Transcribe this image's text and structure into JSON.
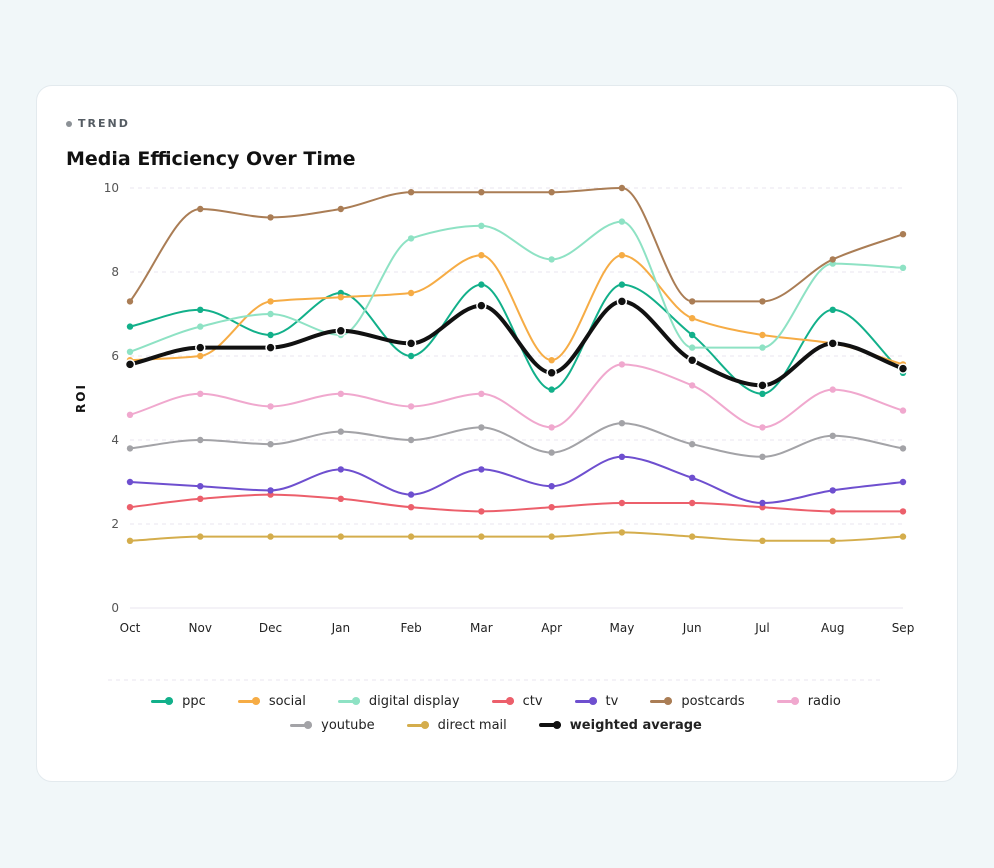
{
  "card": {
    "eyebrow": "TREND",
    "title": "Media Efficiency Over Time"
  },
  "colors": {
    "grid": "#e9e4ef",
    "axis_text": "#555555",
    "page_bg": "#f1f7f9"
  },
  "chart_data": {
    "type": "line",
    "title": "Media Efficiency Over Time",
    "xlabel": "",
    "ylabel": "ROI",
    "ylim": [
      0,
      10
    ],
    "yticks": [
      0,
      2,
      4,
      6,
      8,
      10
    ],
    "grid": "horizontal dashed",
    "legend": "bottom",
    "categories": [
      "Oct",
      "Nov",
      "Dec",
      "Jan",
      "Feb",
      "Mar",
      "Apr",
      "May",
      "Jun",
      "Jul",
      "Aug",
      "Sep"
    ],
    "series": [
      {
        "name": "ppc",
        "color": "#12b08a",
        "values": [
          6.7,
          7.1,
          6.5,
          7.5,
          6.0,
          7.7,
          5.2,
          7.7,
          6.5,
          5.1,
          7.1,
          5.6
        ]
      },
      {
        "name": "social",
        "color": "#f6ac45",
        "values": [
          5.9,
          6.0,
          7.3,
          7.4,
          7.5,
          8.4,
          5.9,
          8.4,
          6.9,
          6.5,
          6.3,
          5.8
        ]
      },
      {
        "name": "digital display",
        "color": "#8ee2c4",
        "values": [
          6.1,
          6.7,
          7.0,
          6.5,
          8.8,
          9.1,
          8.3,
          9.2,
          6.2,
          6.2,
          8.2,
          8.1
        ]
      },
      {
        "name": "ctv",
        "color": "#ec5f6b",
        "values": [
          2.4,
          2.6,
          2.7,
          2.6,
          2.4,
          2.3,
          2.4,
          2.5,
          2.5,
          2.4,
          2.3,
          2.3
        ]
      },
      {
        "name": "tv",
        "color": "#6e4fcf",
        "values": [
          3.0,
          2.9,
          2.8,
          3.3,
          2.7,
          3.3,
          2.9,
          3.6,
          3.1,
          2.5,
          2.8,
          3.0
        ]
      },
      {
        "name": "postcards",
        "color": "#aa7d55",
        "values": [
          7.3,
          9.5,
          9.3,
          9.5,
          9.9,
          9.9,
          9.9,
          10.0,
          7.3,
          7.3,
          8.3,
          8.9
        ]
      },
      {
        "name": "radio",
        "color": "#f0a8ce",
        "values": [
          4.6,
          5.1,
          4.8,
          5.1,
          4.8,
          5.1,
          4.3,
          5.8,
          5.3,
          4.3,
          5.2,
          4.7
        ]
      },
      {
        "name": "youtube",
        "color": "#a3a3a7",
        "values": [
          3.8,
          4.0,
          3.9,
          4.2,
          4.0,
          4.3,
          3.7,
          4.4,
          3.9,
          3.6,
          4.1,
          3.8
        ]
      },
      {
        "name": "direct mail",
        "color": "#d4ad4c",
        "values": [
          1.6,
          1.7,
          1.7,
          1.7,
          1.7,
          1.7,
          1.7,
          1.8,
          1.7,
          1.6,
          1.6,
          1.7
        ]
      },
      {
        "name": "weighted average",
        "color": "#111111",
        "bold": true,
        "values": [
          5.8,
          6.2,
          6.2,
          6.6,
          6.3,
          7.2,
          5.6,
          7.3,
          5.9,
          5.3,
          6.3,
          5.7
        ]
      }
    ]
  }
}
